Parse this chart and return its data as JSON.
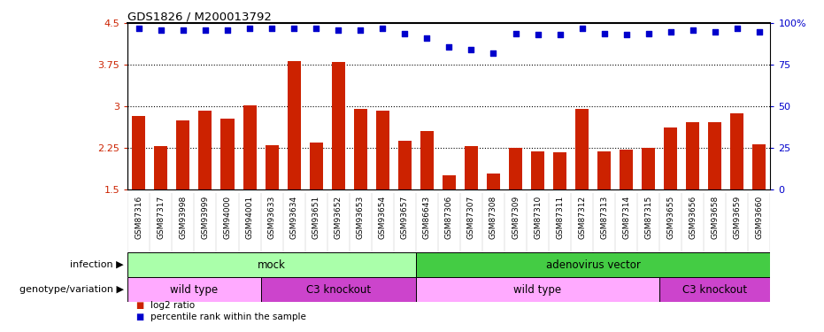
{
  "title": "GDS1826 / M200013792",
  "samples": [
    "GSM87316",
    "GSM87317",
    "GSM93998",
    "GSM93999",
    "GSM94000",
    "GSM94001",
    "GSM93633",
    "GSM93634",
    "GSM93651",
    "GSM93652",
    "GSM93653",
    "GSM93654",
    "GSM93657",
    "GSM86643",
    "GSM87306",
    "GSM87307",
    "GSM87308",
    "GSM87309",
    "GSM87310",
    "GSM87311",
    "GSM87312",
    "GSM87313",
    "GSM87314",
    "GSM87315",
    "GSM93655",
    "GSM93656",
    "GSM93658",
    "GSM93659",
    "GSM93660"
  ],
  "log2_ratio": [
    2.82,
    2.28,
    2.75,
    2.92,
    2.78,
    3.02,
    2.3,
    3.82,
    2.35,
    3.8,
    2.95,
    2.92,
    2.38,
    2.56,
    1.75,
    2.28,
    1.78,
    2.25,
    2.18,
    2.17,
    2.95,
    2.18,
    2.22,
    2.25,
    2.62,
    2.72,
    2.72,
    2.88,
    2.32
  ],
  "percentile_rank": [
    97,
    96,
    96,
    96,
    96,
    97,
    97,
    97,
    97,
    96,
    96,
    97,
    94,
    91,
    86,
    84,
    82,
    94,
    93,
    93,
    97,
    94,
    93,
    94,
    95,
    96,
    95,
    97,
    95
  ],
  "ymin": 1.5,
  "ymax": 4.5,
  "yticks": [
    1.5,
    2.25,
    3.0,
    3.75,
    4.5
  ],
  "ytick_labels": [
    "1.5",
    "2.25",
    "3",
    "3.75",
    "4.5"
  ],
  "right_yticks": [
    0,
    25,
    50,
    75,
    100
  ],
  "right_ytick_labels": [
    "0",
    "25",
    "50",
    "75",
    "100%"
  ],
  "hlines": [
    2.25,
    3.0,
    3.75
  ],
  "bar_color": "#cc2200",
  "dot_color": "#0000cc",
  "dot_size": 18,
  "infection_groups": [
    {
      "label": "mock",
      "start": 0,
      "end": 13,
      "color": "#aaffaa"
    },
    {
      "label": "adenovirus vector",
      "start": 13,
      "end": 29,
      "color": "#44cc44"
    }
  ],
  "genotype_groups": [
    {
      "label": "wild type",
      "start": 0,
      "end": 6,
      "color": "#ffaaff"
    },
    {
      "label": "C3 knockout",
      "start": 6,
      "end": 13,
      "color": "#cc44cc"
    },
    {
      "label": "wild type",
      "start": 13,
      "end": 24,
      "color": "#ffaaff"
    },
    {
      "label": "C3 knockout",
      "start": 24,
      "end": 29,
      "color": "#cc44cc"
    }
  ],
  "infection_label": "infection",
  "genotype_label": "genotype/variation",
  "legend_items": [
    {
      "color": "#cc2200",
      "label": "log2 ratio"
    },
    {
      "color": "#0000cc",
      "label": "percentile rank within the sample"
    }
  ],
  "plot_bg": "#ffffff",
  "tickarea_bg": "#d8d8d8",
  "left_label_color": "#cc2200",
  "right_label_color": "#0000cc"
}
